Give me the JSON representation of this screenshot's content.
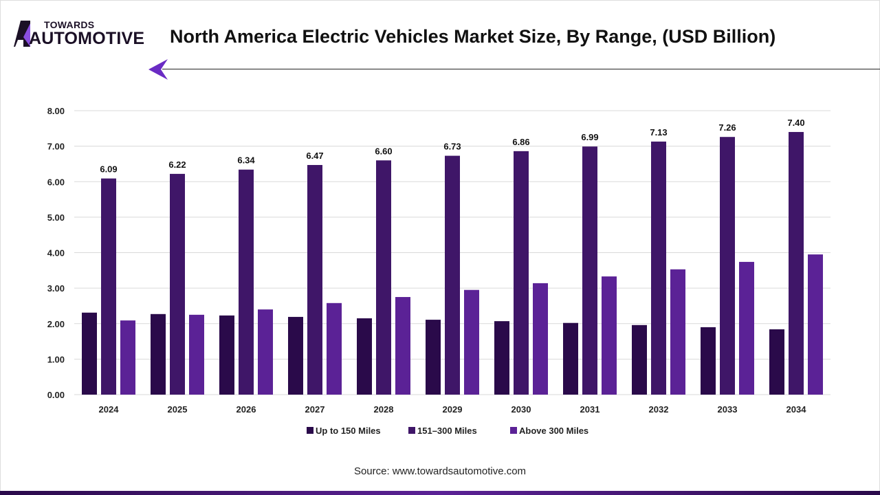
{
  "logo": {
    "top": "TOWARDS",
    "bottom": "AUTOMOTIVE"
  },
  "header": {
    "title": "North America Electric Vehicles Market Size, By Range, (USD Billion)"
  },
  "source": "Source: www.towardsautomotive.com",
  "colors": {
    "up_to_150": "#2a0a4a",
    "151_300": "#3f1668",
    "above_300": "#5b2296",
    "accent": "#6a2bc4"
  },
  "chart_data": {
    "type": "bar",
    "title": "North America Electric Vehicles Market Size, By Range, (USD Billion)",
    "categories": [
      "2024",
      "2025",
      "2026",
      "2027",
      "2028",
      "2029",
      "2030",
      "2031",
      "2032",
      "2033",
      "2034"
    ],
    "series": [
      {
        "name": "Up to 150 Miles",
        "color": "#2a0a4a",
        "values": [
          2.31,
          2.27,
          2.23,
          2.19,
          2.15,
          2.11,
          2.07,
          2.02,
          1.96,
          1.9,
          1.84
        ]
      },
      {
        "name": "151–300 Miles",
        "color": "#3f1668",
        "values": [
          6.09,
          6.22,
          6.34,
          6.47,
          6.6,
          6.73,
          6.86,
          6.99,
          7.13,
          7.26,
          7.4
        ],
        "labels": [
          "6.09",
          "6.22",
          "6.34",
          "6.47",
          "6.60",
          "6.73",
          "6.86",
          "6.99",
          "7.13",
          "7.26",
          "7.40"
        ]
      },
      {
        "name": "Above 300 Miles",
        "color": "#5b2296",
        "values": [
          2.09,
          2.25,
          2.4,
          2.58,
          2.75,
          2.95,
          3.14,
          3.33,
          3.53,
          3.74,
          3.95
        ]
      }
    ],
    "yticks": [
      "0.00",
      "1.00",
      "2.00",
      "3.00",
      "4.00",
      "5.00",
      "6.00",
      "7.00",
      "8.00"
    ],
    "ylim": [
      0,
      8
    ],
    "grid": true,
    "legend": "bottom"
  }
}
